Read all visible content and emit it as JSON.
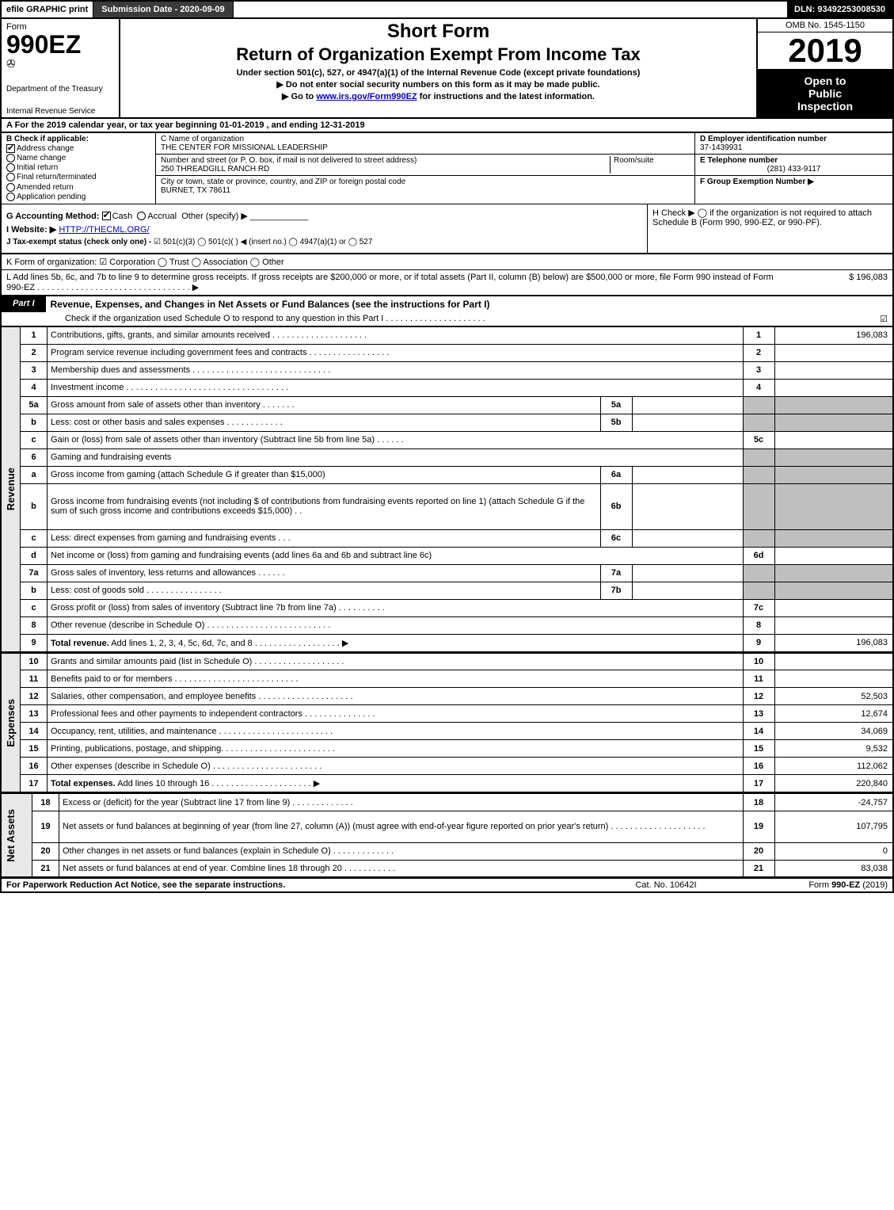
{
  "colors": {
    "black": "#000000",
    "darkgrey": "#3b3b3b",
    "lightgrey": "#bfbfbf",
    "sidegrey": "#e8e8e8",
    "link": "#0000cc"
  },
  "topbar": {
    "efile": "efile GRAPHIC print",
    "submission": "Submission Date - 2020-09-09",
    "dln": "DLN: 93492253008530"
  },
  "header": {
    "form_word": "Form",
    "form_no": "990EZ",
    "dept1": "Department of the Treasury",
    "dept2": "Internal Revenue Service",
    "short_form": "Short Form",
    "title": "Return of Organization Exempt From Income Tax",
    "under": "Under section 501(c), 527, or 4947(a)(1) of the Internal Revenue Code (except private foundations)",
    "donot": "▶ Do not enter social security numbers on this form as it may be made public.",
    "goto_pre": "▶ Go to ",
    "goto_link": "www.irs.gov/Form990EZ",
    "goto_post": " for instructions and the latest information.",
    "omb": "OMB No. 1545-1150",
    "year": "2019",
    "open1": "Open to",
    "open2": "Public",
    "open3": "Inspection"
  },
  "rowA": "A For the 2019 calendar year, or tax year beginning 01-01-2019 , and ending 12-31-2019",
  "sectionB": {
    "title": "B Check if applicable:",
    "opts": [
      "Address change",
      "Name change",
      "Initial return",
      "Final return/terminated",
      "Amended return",
      "Application pending"
    ],
    "checked_idx": 0
  },
  "sectionC": {
    "label_name": "C Name of organization",
    "org_name": "THE CENTER FOR MISSIONAL LEADERSHIP",
    "label_street": "Number and street (or P. O. box, if mail is not delivered to street address)",
    "room_label": "Room/suite",
    "street": "250 THREADGILL RANCH RD",
    "label_city": "City or town, state or province, country, and ZIP or foreign postal code",
    "city": "BURNET, TX  78611"
  },
  "sectionD": {
    "d_label": "D Employer identification number",
    "ein": "37-1439931",
    "e_label": "E Telephone number",
    "phone": "(281) 433-9117",
    "f_label": "F Group Exemption Number   ▶"
  },
  "sectionGH": {
    "g_label": "G Accounting Method:",
    "g_opts": [
      "Cash",
      "Accrual",
      "Other (specify) ▶"
    ],
    "i_label": "I Website: ▶",
    "website": "HTTP://THECML.ORG/",
    "j_label": "J Tax-exempt status (check only one) - ",
    "j_opts": "☑ 501(c)(3)  ◯ 501(c)( )  ◀ (insert no.)  ◯ 4947(a)(1) or  ◯ 527",
    "h_text": "H  Check ▶  ◯  if the organization is not required to attach Schedule B (Form 990, 990-EZ, or 990-PF)."
  },
  "rowK": "K Form of organization:   ☑ Corporation   ◯ Trust   ◯ Association   ◯ Other",
  "rowL": {
    "text": "L Add lines 5b, 6c, and 7b to line 9 to determine gross receipts. If gross receipts are $200,000 or more, or if total assets (Part II, column (B) below) are $500,000 or more, file Form 990 instead of Form 990-EZ . . . . . . . . . . . . . . . . . . . . . . . . . . . . . . . .  ▶",
    "amount": "$ 196,083"
  },
  "part1": {
    "badge": "Part I",
    "title": "Revenue, Expenses, and Changes in Net Assets or Fund Balances (see the instructions for Part I)",
    "sub": "Check if the organization used Schedule O to respond to any question in this Part I . . . . . . . . . . . . . . . . . . . . .",
    "sub_checked": "☑"
  },
  "side_labels": {
    "revenue": "Revenue",
    "expenses": "Expenses",
    "net": "Net Assets"
  },
  "lines": [
    {
      "n": "1",
      "desc": "Contributions, gifts, grants, and similar amounts received . . . . . . . . . . . . . . . . . . . .",
      "r": "1",
      "amt": "196,083"
    },
    {
      "n": "2",
      "desc": "Program service revenue including government fees and contracts . . . . . . . . . . . . . . . . .",
      "r": "2",
      "amt": ""
    },
    {
      "n": "3",
      "desc": "Membership dues and assessments . . . . . . . . . . . . . . . . . . . . . . . . . . . . .",
      "r": "3",
      "amt": ""
    },
    {
      "n": "4",
      "desc": "Investment income . . . . . . . . . . . . . . . . . . . . . . . . . . . . . . . . . .",
      "r": "4",
      "amt": ""
    },
    {
      "n": "5a",
      "desc": "Gross amount from sale of assets other than inventory . . . . . . .",
      "sub": "5a",
      "subval": "",
      "grey": true
    },
    {
      "n": "b",
      "desc": "Less: cost or other basis and sales expenses . . . . . . . . . . . .",
      "sub": "5b",
      "subval": "",
      "grey": true
    },
    {
      "n": "c",
      "desc": "Gain or (loss) from sale of assets other than inventory (Subtract line 5b from line 5a) . . . . . .",
      "r": "5c",
      "amt": ""
    },
    {
      "n": "6",
      "desc": "Gaming and fundraising events",
      "noright": true
    },
    {
      "n": "a",
      "desc": "Gross income from gaming (attach Schedule G if greater than $15,000)",
      "sub": "6a",
      "subval": "",
      "grey": true
    },
    {
      "n": "b",
      "desc": "Gross income from fundraising events (not including $                    of contributions from fundraising events reported on line 1) (attach Schedule G if the sum of such gross income and contributions exceeds $15,000)   . .",
      "sub": "6b",
      "subval": "",
      "grey": true,
      "tall": true
    },
    {
      "n": "c",
      "desc": "Less: direct expenses from gaming and fundraising events     . . .",
      "sub": "6c",
      "subval": "",
      "grey": true
    },
    {
      "n": "d",
      "desc": "Net income or (loss) from gaming and fundraising events (add lines 6a and 6b and subtract line 6c)",
      "r": "6d",
      "amt": ""
    },
    {
      "n": "7a",
      "desc": "Gross sales of inventory, less returns and allowances . . . . . .",
      "sub": "7a",
      "subval": "",
      "grey": true
    },
    {
      "n": "b",
      "desc": "Less: cost of goods sold        . . . . . . . . . . . . . . . .",
      "sub": "7b",
      "subval": "",
      "grey": true
    },
    {
      "n": "c",
      "desc": "Gross profit or (loss) from sales of inventory (Subtract line 7b from line 7a) . . . . . . . . . .",
      "r": "7c",
      "amt": ""
    },
    {
      "n": "8",
      "desc": "Other revenue (describe in Schedule O) . . . . . . . . . . . . . . . . . . . . . . . . . .",
      "r": "8",
      "amt": ""
    },
    {
      "n": "9",
      "desc": "Total revenue. Add lines 1, 2, 3, 4, 5c, 6d, 7c, and 8  . . . . . . . . . . . . . . . . . .   ▶",
      "r": "9",
      "amt": "196,083",
      "bold": true
    }
  ],
  "exp_lines": [
    {
      "n": "10",
      "desc": "Grants and similar amounts paid (list in Schedule O) . . . . . . . . . . . . . . . . . . .",
      "r": "10",
      "amt": ""
    },
    {
      "n": "11",
      "desc": "Benefits paid to or for members    . . . . . . . . . . . . . . . . . . . . . . . . . .",
      "r": "11",
      "amt": ""
    },
    {
      "n": "12",
      "desc": "Salaries, other compensation, and employee benefits . . . . . . . . . . . . . . . . . . . .",
      "r": "12",
      "amt": "52,503"
    },
    {
      "n": "13",
      "desc": "Professional fees and other payments to independent contractors . . . . . . . . . . . . . . .",
      "r": "13",
      "amt": "12,674"
    },
    {
      "n": "14",
      "desc": "Occupancy, rent, utilities, and maintenance . . . . . . . . . . . . . . . . . . . . . . . .",
      "r": "14",
      "amt": "34,069"
    },
    {
      "n": "15",
      "desc": "Printing, publications, postage, and shipping. . . . . . . . . . . . . . . . . . . . . . . .",
      "r": "15",
      "amt": "9,532"
    },
    {
      "n": "16",
      "desc": "Other expenses (describe in Schedule O)    . . . . . . . . . . . . . . . . . . . . . . .",
      "r": "16",
      "amt": "112,062"
    },
    {
      "n": "17",
      "desc": "Total expenses. Add lines 10 through 16    . . . . . . . . . . . . . . . . . . . . .   ▶",
      "r": "17",
      "amt": "220,840",
      "bold": true
    }
  ],
  "net_lines": [
    {
      "n": "18",
      "desc": "Excess or (deficit) for the year (Subtract line 17 from line 9)       . . . . . . . . . . . . .",
      "r": "18",
      "amt": "-24,757"
    },
    {
      "n": "19",
      "desc": "Net assets or fund balances at beginning of year (from line 27, column (A)) (must agree with end-of-year figure reported on prior year's return) . . . . . . . . . . . . . . . . . . . .",
      "r": "19",
      "amt": "107,795",
      "tall": true
    },
    {
      "n": "20",
      "desc": "Other changes in net assets or fund balances (explain in Schedule O) . . . . . . . . . . . . .",
      "r": "20",
      "amt": "0"
    },
    {
      "n": "21",
      "desc": "Net assets or fund balances at end of year. Combine lines 18 through 20 . . . . . . . . . . .",
      "r": "21",
      "amt": "83,038"
    }
  ],
  "footer": {
    "left": "For Paperwork Reduction Act Notice, see the separate instructions.",
    "center": "Cat. No. 10642I",
    "right": "Form 990-EZ (2019)"
  }
}
